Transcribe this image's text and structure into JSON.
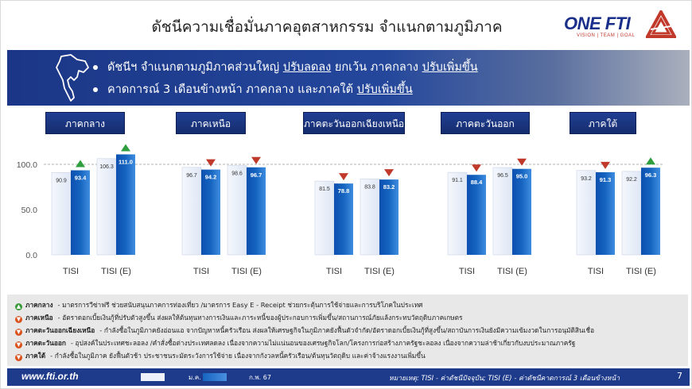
{
  "title": "ดัชนีความเชื่อมั่นภาคอุตสาหกรรม จำแนกตามภูมิภาค",
  "logo": {
    "text": "ONE FTI",
    "tagline": "VISION | TEAM | GOAL"
  },
  "banner": {
    "bullet1": {
      "pre": "ดัชนีฯ จำแนกตามภูมิภาคส่วนใหญ่ ",
      "u1": "ปรับลดลง",
      "mid": " ยกเว้น ภาคกลาง ",
      "u2": "ปรับเพิ่มขึ้น"
    },
    "bullet2": {
      "pre": "คาดการณ์ 3 เดือนข้างหน้า ภาคกลาง และภาคใต้ ",
      "u1": "ปรับเพิ่มขึ้น"
    }
  },
  "regions": [
    "ภาคกลาง",
    "ภาคเหนือ",
    "ภาคตะวันออกเฉียงเหนือ",
    "ภาคตะวันออก",
    "ภาคใต้"
  ],
  "chart_data": {
    "type": "bar",
    "regions": [
      "ภาคกลาง",
      "ภาคเหนือ",
      "ภาคตะวันออกเฉียงเหนือ",
      "ภาคตะวันออก",
      "ภาคใต้"
    ],
    "categories": [
      "TISI",
      "TISI (E)"
    ],
    "series": [
      {
        "name": "ม.ค. 67",
        "color": "#dfe7f5",
        "values": [
          [
            90.9,
            106.3
          ],
          [
            96.7,
            98.6
          ],
          [
            81.5,
            83.8
          ],
          [
            91.1,
            96.5
          ],
          [
            93.2,
            92.2
          ]
        ]
      },
      {
        "name": "ก.พ. 67",
        "color": "#1565c0",
        "values": [
          [
            93.4,
            111.0
          ],
          [
            94.2,
            96.7
          ],
          [
            78.8,
            83.2
          ],
          [
            88.4,
            95.0
          ],
          [
            91.3,
            96.3
          ]
        ]
      }
    ],
    "directions": [
      [
        "up",
        "up"
      ],
      [
        "down",
        "down"
      ],
      [
        "down",
        "down"
      ],
      [
        "down",
        "down"
      ],
      [
        "down",
        "up"
      ]
    ],
    "reference_line": 100,
    "yticks": [
      "0.0",
      "50.0",
      "100.0"
    ],
    "ylim": [
      0,
      115
    ]
  },
  "notes": [
    {
      "dir": "up",
      "region": "ภาคกลาง",
      "text": "- มาตรการวีซ่าฟรี ช่วยสนับสนุนภาคการท่องเที่ยว /มาตรการ Easy E - Receipt ช่วยกระตุ้นการใช้จ่ายและการบริโภคในประเทศ"
    },
    {
      "dir": "dn",
      "region": "ภาคเหนือ",
      "text": "- อัตราดอกเบี้ยเงินกู้ที่ปรับตัวสูงขึ้น ส่งผลให้ต้นทุนทางการเงินและภาระหนี้ของผู้ประกอบการเพิ่มขึ้น/สถานการณ์ภัยแล้งกระทบวัตถุดิบภาคเกษตร"
    },
    {
      "dir": "dn",
      "region": "ภาคตะวันออกเฉียงเหนือ",
      "text": "- กำลังซื้อในภูมิภาคยังอ่อนแอ จากปัญหาหนี้ครัวเรือน ส่งผลให้เศรษฐกิจในภูมิภาคยังฟื้นตัวจำกัด/อัตราดอกเบี้ยเงินกู้ที่สูงขึ้น/สถาบันการเงินยังมีความเข้มงวดในการอนุมัติสินเชื่อ"
    },
    {
      "dir": "dn",
      "region": "ภาคตะวันออก",
      "text": "- อุปสงค์ในประเทศชะลอลง /คำสั่งซื้อต่างประเทศลดลง เนื่องจากความไม่แน่นอนของเศรษฐกิจโลก/โครงการก่อสร้างภาครัฐชะลอลง เนื่องจากความล่าช้าเกี่ยวกับงบประมาณภาครัฐ"
    },
    {
      "dir": "dn",
      "region": "ภาคใต้",
      "text": "- กำลังซื้อในภูมิภาค ยังฟื้นตัวช้า ประชาชนระมัดระวังการใช้จ่าย เนื่องจากกังวลหนี้ครัวเรือน/ต้นทุนวัตถุดิบ และค่าจ้างแรงงานเพิ่มขึ้น"
    }
  ],
  "footer": {
    "url": "www.fti.or.th",
    "legend1": "ม.ค. 67",
    "legend2": "ก.พ. 67",
    "note": "หมายเหตุ: TISI - ค่าดัชนีปัจจุบัน; TISI (E) - ค่าดัชนีคาดการณ์ 3 เดือนข้างหน้า",
    "page": "7"
  }
}
